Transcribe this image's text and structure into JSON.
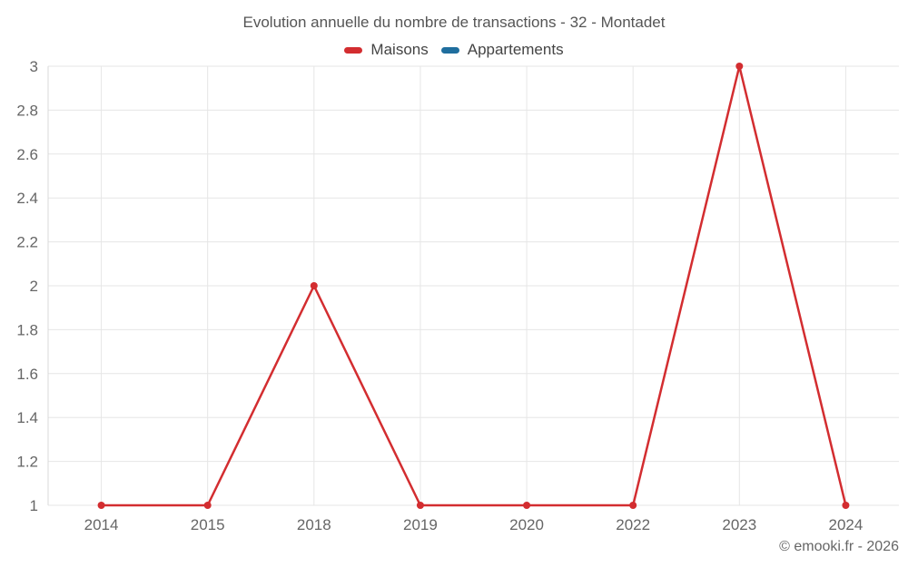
{
  "chart_data": {
    "type": "line",
    "title": "Evolution annuelle du nombre de transactions - 32 - Montadet",
    "categories": [
      "2014",
      "2015",
      "2018",
      "2019",
      "2020",
      "2022",
      "2023",
      "2024"
    ],
    "series": [
      {
        "name": "Maisons",
        "color": "#d32d30",
        "values": [
          1,
          1,
          2,
          1,
          1,
          1,
          3,
          1
        ]
      },
      {
        "name": "Appartements",
        "color": "#1f6e9e",
        "values": [
          null,
          null,
          null,
          null,
          null,
          null,
          null,
          null
        ]
      }
    ],
    "xlabel": "",
    "ylabel": "",
    "ylim": [
      1,
      3
    ],
    "ytick_step": 0.2,
    "grid": true,
    "legend_position": "top"
  },
  "footer": {
    "copyright": "© emooki.fr - 2026"
  },
  "colors": {
    "grid": "#e6e6e6",
    "axis": "#d9d9d9",
    "tick_text": "#666666",
    "title_text": "#555555"
  }
}
